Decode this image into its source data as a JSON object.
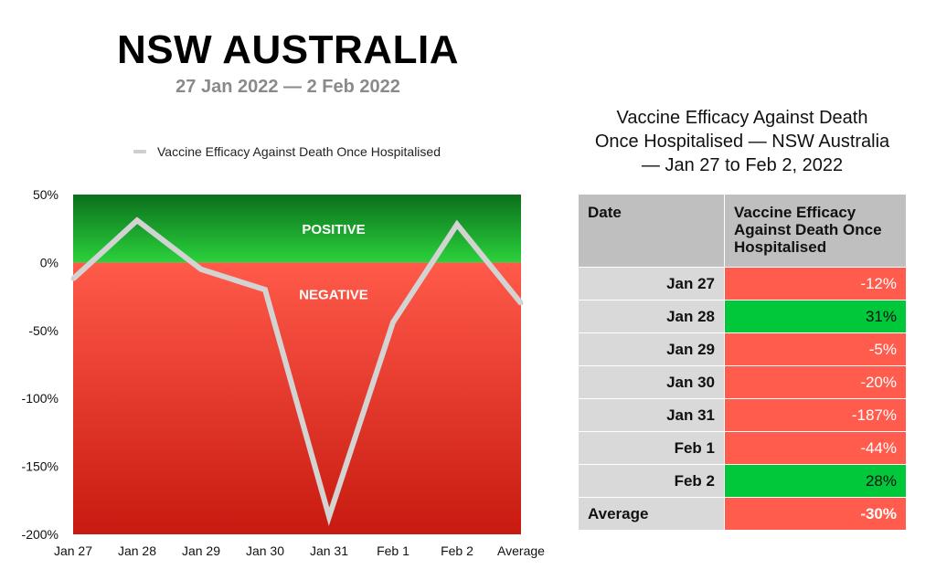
{
  "header": {
    "title": "NSW AUSTRALIA",
    "subtitle": "27 Jan 2022 — 2 Feb 2022"
  },
  "chart_data": {
    "type": "line",
    "categories": [
      "Jan 27",
      "Jan 28",
      "Jan 29",
      "Jan 30",
      "Jan 31",
      "Feb 1",
      "Feb 2",
      "Average"
    ],
    "series": [
      {
        "name": "Vaccine Efficacy Against Death Once Hospitalised",
        "values": [
          -12,
          31,
          -5,
          -20,
          -187,
          -44,
          28,
          -30
        ],
        "color": "#d3d3d3"
      }
    ],
    "y_ticks": [
      50,
      0,
      -50,
      -100,
      -150,
      -200
    ],
    "y_tick_labels": [
      "50%",
      "0%",
      "-50%",
      "-100%",
      "-150%",
      "-200%"
    ],
    "ylim": [
      -200,
      50
    ],
    "legend_position": "top",
    "regions": [
      {
        "label": "POSITIVE",
        "from": 0,
        "to": 50,
        "color_top": "#0b6f1c",
        "color_bottom": "#2bd13c"
      },
      {
        "label": "NEGATIVE",
        "from": -200,
        "to": 0,
        "color_top": "#ff5a4a",
        "color_bottom": "#c81a10"
      }
    ],
    "grid": false
  },
  "table": {
    "title_lines": [
      "Vaccine Efficacy Against Death",
      "Once Hospitalised — NSW Australia",
      "— Jan 27 to Feb 2, 2022"
    ],
    "header_date": "Date",
    "header_value": "Vaccine Efficacy Against Death Once Hospitalised",
    "rows": [
      {
        "date": "Jan 27",
        "value": "-12%"
      },
      {
        "date": "Jan 28",
        "value": "31%"
      },
      {
        "date": "Jan 29",
        "value": "-5%"
      },
      {
        "date": "Jan 30",
        "value": "-20%"
      },
      {
        "date": "Jan 31",
        "value": "-187%"
      },
      {
        "date": "Feb 1",
        "value": "-44%"
      },
      {
        "date": "Feb 2",
        "value": "28%"
      },
      {
        "date": "Average",
        "value": "-30%"
      }
    ],
    "positive_color": "#00c83a",
    "negative_color": "#ff5c4d"
  }
}
